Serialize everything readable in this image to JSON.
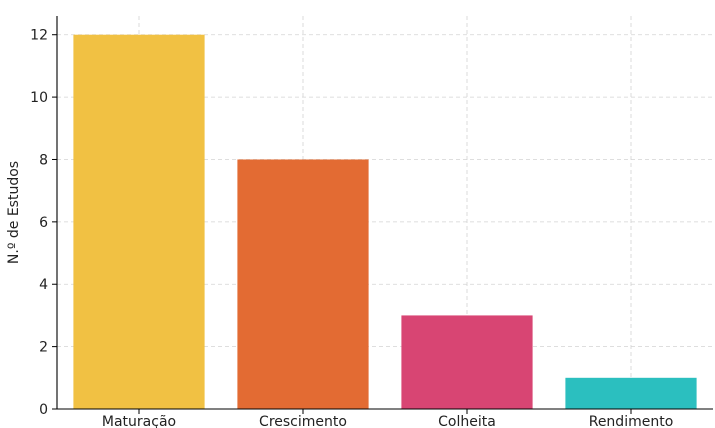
{
  "chart_data": {
    "type": "bar",
    "title": "",
    "xlabel": "",
    "ylabel": "N.º de Estudos",
    "categories": [
      "Maturação",
      "Crescimento",
      "Colheita",
      "Rendimento"
    ],
    "values": [
      12,
      8,
      3,
      1
    ],
    "colors": [
      "#f1c143",
      "#e36b33",
      "#d84573",
      "#2bbfbf"
    ],
    "ylim": [
      0,
      12.6
    ],
    "yticks": [
      0,
      2,
      4,
      6,
      8,
      10,
      12
    ],
    "grid": true,
    "legend": "none"
  }
}
